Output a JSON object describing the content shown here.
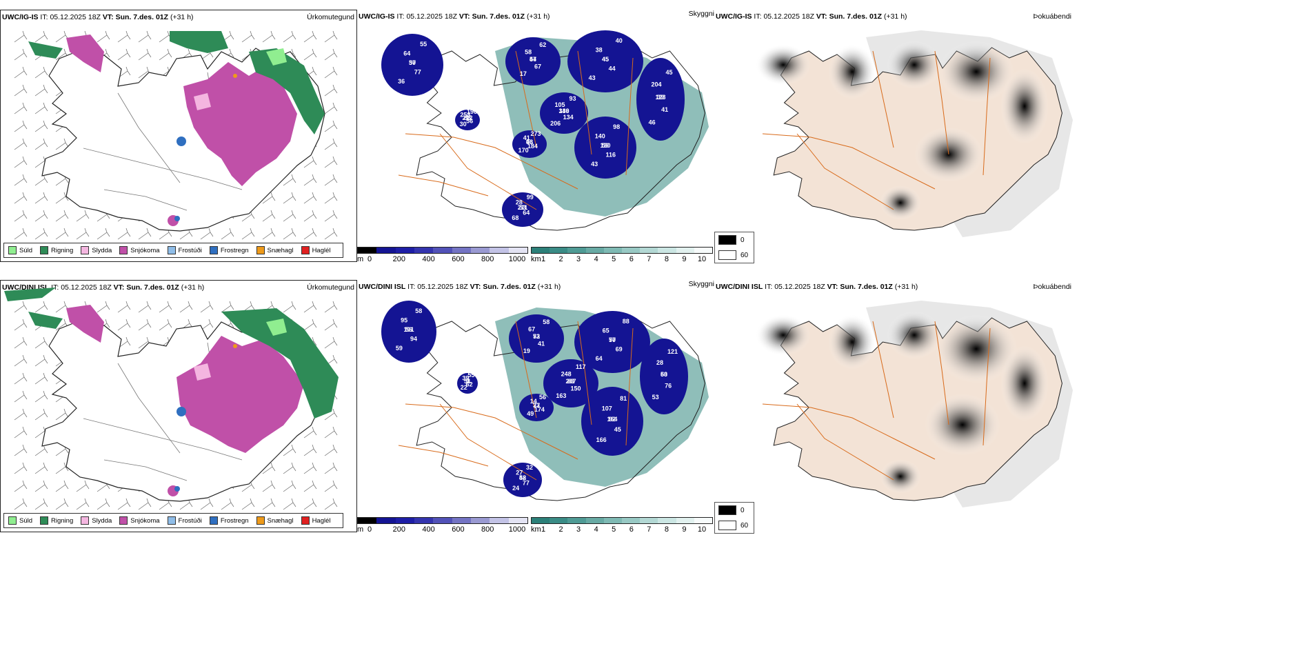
{
  "rows": [
    {
      "model": "UWC/IG-IS",
      "init_label": "IT:",
      "init_time": "05.12.2025 18Z",
      "valid_label": "VT:",
      "valid_time": "Sun. 7.des. 01Z",
      "lead": "(+31 h)",
      "precip_title": "Úrkomutegund",
      "cloud_title": "Skyggni",
      "fog_title": "Þokuábendi",
      "ceiling_labels": [
        "50",
        "77",
        "36",
        "37",
        "64",
        "55",
        "54",
        "67",
        "17",
        "47",
        "58",
        "62",
        "45",
        "44",
        "43",
        "45",
        "38",
        "40",
        "39",
        "41",
        "46",
        "123",
        "204",
        "45",
        "146",
        "134",
        "206",
        "339",
        "105",
        "93",
        "130",
        "116",
        "43",
        "59",
        "140",
        "98",
        "96",
        "184",
        "170",
        "43",
        "41",
        "273",
        "211",
        "64",
        "68",
        "53",
        "28",
        "99",
        "88",
        "56",
        "30",
        "212",
        "258",
        "196",
        "71",
        "94"
      ]
    },
    {
      "model": "UWC/DINI ISL",
      "init_label": "IT:",
      "init_time": "05.12.2025 18Z",
      "valid_label": "VT:",
      "valid_time": "Sun. 7.des. 01Z",
      "lead": "(+31 h)",
      "precip_title": "Úrkomutegund",
      "cloud_title": "Skyggni",
      "fog_title": "Þokuábendi",
      "ceiling_labels": [
        "101",
        "94",
        "59",
        "56",
        "95",
        "58",
        "72",
        "41",
        "19",
        "53",
        "67",
        "58",
        "70",
        "69",
        "64",
        "57",
        "65",
        "88",
        "63",
        "76",
        "53",
        "50",
        "28",
        "121",
        "83",
        "150",
        "163",
        "287",
        "248",
        "117",
        "164",
        "45",
        "166",
        "92",
        "107",
        "81",
        "73",
        "174",
        "49",
        "37",
        "14",
        "56",
        "58",
        "77",
        "24",
        "42",
        "27",
        "32",
        "51",
        "62",
        "22",
        "9",
        "39",
        "55",
        "120",
        "90"
      ]
    }
  ],
  "precip_legend": [
    {
      "label": "Súld",
      "color": "#90ee90"
    },
    {
      "label": "Rigning",
      "color": "#2e8b57"
    },
    {
      "label": "Slydda",
      "color": "#f4b6e0"
    },
    {
      "label": "Snjókoma",
      "color": "#c050a8"
    },
    {
      "label": "Frostúði",
      "color": "#8fbde8"
    },
    {
      "label": "Frostregn",
      "color": "#2f6fc0"
    },
    {
      "label": "Snæhagl",
      "color": "#ee9a1a"
    },
    {
      "label": "Haglél",
      "color": "#e02020"
    }
  ],
  "cloud_base_bar": {
    "unit": "m",
    "ticks": [
      "0",
      "200",
      "400",
      "600",
      "800",
      "1000"
    ],
    "colors": [
      "#000000",
      "#141493",
      "#1e1ea6",
      "#3434ae",
      "#5252b8",
      "#7474c4",
      "#9a9ad2",
      "#c3c3e6",
      "#e3e3f3"
    ]
  },
  "visibility_bar": {
    "unit": "km",
    "ticks": [
      "1",
      "2",
      "3",
      "4",
      "5",
      "6",
      "7",
      "8",
      "9",
      "10"
    ],
    "colors": [
      "#2c8079",
      "#3a8c86",
      "#4f9b95",
      "#68aaa4",
      "#7fbab4",
      "#98c9c4",
      "#b3d8d4",
      "#cbe6e3",
      "#e2f1ef",
      "#f7fbfb"
    ]
  },
  "fog_key": [
    {
      "label": "0",
      "color": "#000000"
    },
    {
      "label": "60",
      "color": "#ffffff"
    }
  ],
  "colors": {
    "snow": "#c050a8",
    "rain": "#2e8b57",
    "drizzle": "#90ee90",
    "sleet": "#f4b6e0",
    "frzrain": "#2f6fc0",
    "snowgrain": "#ee9a1a",
    "cloudlow": "#141493",
    "cloudmid": "#3a3aa8",
    "visgreen": "#6aa8a2",
    "road": "#d86a1a",
    "land": "#f3e3d6"
  }
}
